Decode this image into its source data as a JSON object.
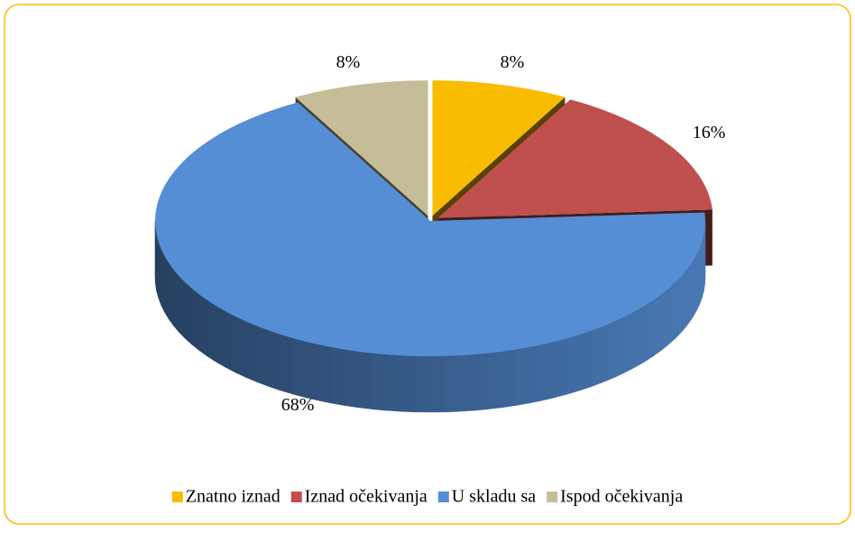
{
  "chart_data": {
    "type": "pie",
    "categories": [
      "Znatno iznad",
      "Iznad očekivanja",
      "U skladu sa",
      "Ispod očekivanja"
    ],
    "values": [
      8,
      16,
      68,
      8
    ],
    "value_labels": [
      "8%",
      "16%",
      "68%",
      "8%"
    ],
    "colors": [
      "#f9bc00",
      "#c0504d",
      "#558ed5",
      "#c4bd97"
    ],
    "legend": "bottom"
  }
}
